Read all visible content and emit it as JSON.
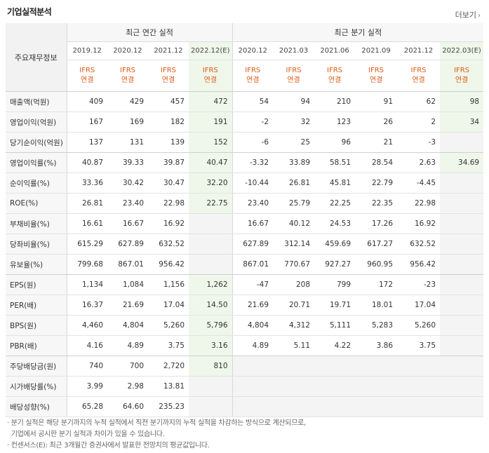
{
  "title": "기업실적분석",
  "more_label": "더보기",
  "corner_label": "주요재무정보",
  "groups": {
    "annual": "최근 연간 실적",
    "quarter": "최근 분기 실적"
  },
  "periods": [
    "2019.12",
    "2020.12",
    "2021.12",
    "2022.12(E)",
    "2020.12",
    "2021.03",
    "2021.06",
    "2021.09",
    "2021.12",
    "2022.03(E)"
  ],
  "standard": {
    "top": "IFRS",
    "bottom": "연결"
  },
  "rows": [
    {
      "label": "매출액(억원)",
      "values": [
        "409",
        "429",
        "457",
        "472",
        "54",
        "94",
        "210",
        "91",
        "62",
        "98"
      ]
    },
    {
      "label": "영업이익(억원)",
      "values": [
        "167",
        "169",
        "182",
        "191",
        "-2",
        "32",
        "123",
        "26",
        "2",
        "34"
      ]
    },
    {
      "label": "당기순이익(억원)",
      "values": [
        "137",
        "131",
        "139",
        "152",
        "-6",
        "25",
        "96",
        "21",
        "-3",
        ""
      ]
    },
    {
      "label": "영업이익률(%)",
      "values": [
        "40.87",
        "39.33",
        "39.87",
        "40.47",
        "-3.32",
        "33.89",
        "58.51",
        "28.54",
        "2.63",
        "34.69"
      ]
    },
    {
      "label": "순이익률(%)",
      "values": [
        "33.36",
        "30.42",
        "30.47",
        "32.20",
        "-10.44",
        "26.81",
        "45.81",
        "22.79",
        "-4.45",
        ""
      ]
    },
    {
      "label": "ROE(%)",
      "values": [
        "26.81",
        "23.40",
        "22.98",
        "22.75",
        "23.40",
        "25.79",
        "22.25",
        "22.35",
        "22.98",
        ""
      ]
    },
    {
      "label": "부채비율(%)",
      "values": [
        "16.61",
        "16.67",
        "16.92",
        "",
        "16.67",
        "40.12",
        "24.53",
        "17.26",
        "16.92",
        ""
      ]
    },
    {
      "label": "당좌비율(%)",
      "values": [
        "615.29",
        "627.89",
        "632.52",
        "",
        "627.89",
        "312.14",
        "459.69",
        "617.27",
        "632.52",
        ""
      ]
    },
    {
      "label": "유보율(%)",
      "values": [
        "799.68",
        "867.01",
        "956.42",
        "",
        "867.01",
        "770.67",
        "927.27",
        "960.95",
        "956.42",
        ""
      ]
    },
    {
      "label": "EPS(원)",
      "values": [
        "1,134",
        "1,084",
        "1,156",
        "1,262",
        "-47",
        "208",
        "799",
        "172",
        "-23",
        ""
      ]
    },
    {
      "label": "PER(배)",
      "values": [
        "16.37",
        "21.69",
        "17.04",
        "14.50",
        "21.69",
        "20.71",
        "19.71",
        "18.01",
        "17.04",
        ""
      ]
    },
    {
      "label": "BPS(원)",
      "values": [
        "4,460",
        "4,804",
        "5,260",
        "5,796",
        "4,804",
        "4,312",
        "5,111",
        "5,283",
        "5,260",
        ""
      ]
    },
    {
      "label": "PBR(배)",
      "values": [
        "4.16",
        "4.89",
        "3.75",
        "3.16",
        "4.89",
        "5.11",
        "4.22",
        "3.86",
        "3.75",
        ""
      ]
    },
    {
      "label": "주당배당금(원)",
      "values": [
        "740",
        "700",
        "2,720",
        "810",
        "",
        "",
        "",
        "",
        "",
        ""
      ]
    },
    {
      "label": "시가배당률(%)",
      "values": [
        "3.99",
        "2.98",
        "13.81",
        "",
        "",
        "",
        "",
        "",
        "",
        ""
      ]
    },
    {
      "label": "배당성향(%)",
      "values": [
        "65.28",
        "64.60",
        "235.23",
        "",
        "",
        "",
        "",
        "",
        "",
        ""
      ]
    }
  ],
  "group_breaks_after": [
    2,
    8,
    12
  ],
  "notes": [
    "· 분기 실적은 해당 분기까지의 누적 실적에서 직전 분기까지의 누적 실적을 차감하는 방식으로 계산되므로,",
    "  기업에서 공시한 분기 실적과 차이가 있을 수 있습니다.",
    "· 컨센서스(E): 최근 3개월간 증권사에서 발표한 전망치의 평균값입니다."
  ]
}
